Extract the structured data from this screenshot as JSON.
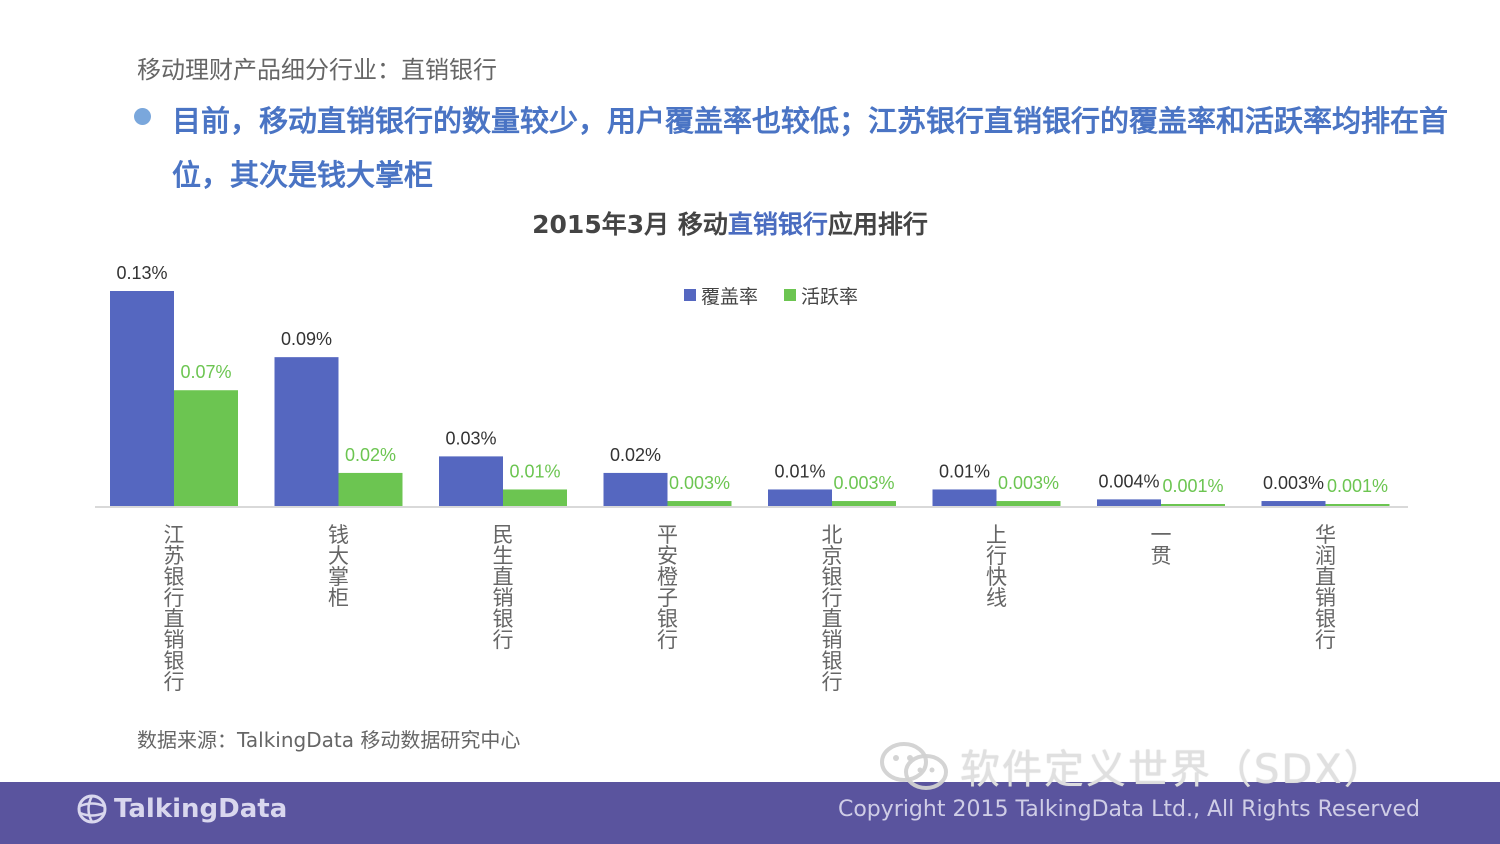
{
  "slide": {
    "section_title": "移动理财产品细分行业：直销银行",
    "headline": "目前，移动直销银行的数量较少，用户覆盖率也较低；江苏银行直销银行的覆盖率和活跃率均排在首位，其次是钱大掌柜",
    "source": "数据来源：TalkingData 移动数据研究中心",
    "watermark_text": "软件定义世界（SDX）",
    "watermark_icon": "wechat-icon",
    "brand_name": "TalkingData",
    "brand_icon": "globe-icon",
    "copyright": "Copyright 2015 TalkingData Ltd., All Rights Reserved"
  },
  "chart_data": {
    "type": "bar",
    "title_parts": [
      "2015年3月 移动",
      "直销银行",
      "应用排行"
    ],
    "categories": [
      "江苏银行直销银行",
      "钱大掌柜",
      "民生直销银行",
      "平安橙子银行",
      "北京银行直销银行",
      "上行快线",
      "一贯",
      "华润直销银行"
    ],
    "series": [
      {
        "name": "覆盖率",
        "color": "#5567c0",
        "values": [
          0.13,
          0.09,
          0.03,
          0.02,
          0.01,
          0.01,
          0.004,
          0.003
        ],
        "labels": [
          "0.13%",
          "0.09%",
          "0.03%",
          "0.02%",
          "0.01%",
          "0.01%",
          "0.004%",
          "0.003%"
        ]
      },
      {
        "name": "活跃率",
        "color": "#6cc551",
        "values": [
          0.07,
          0.02,
          0.01,
          0.003,
          0.003,
          0.003,
          0.001,
          0.001
        ],
        "labels": [
          "0.07%",
          "0.02%",
          "0.01%",
          "0.003%",
          "0.003%",
          "0.003%",
          "0.001%",
          "0.001%"
        ]
      }
    ],
    "unit": "%",
    "ylim": [
      0,
      0.13
    ],
    "legend_position": "top-center",
    "grid": false,
    "label_colors": {
      "coverage": "#333333",
      "active": "#6cc551"
    }
  }
}
